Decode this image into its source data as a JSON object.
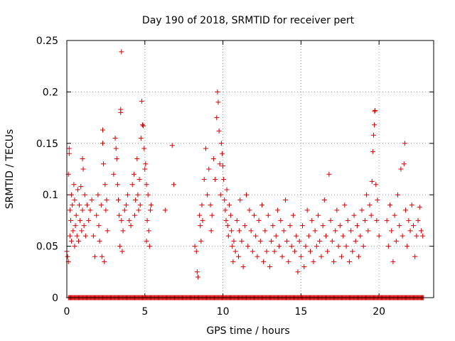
{
  "chart_data": {
    "type": "scatter",
    "title": "Day 190 of 2018, SRMTID for receiver pert",
    "xlabel": "GPS time / hours",
    "ylabel": "SRMTID / TECUs",
    "xlim": [
      0,
      23.5
    ],
    "ylim": [
      0,
      0.25
    ],
    "xticks": [
      0,
      5,
      10,
      15,
      20
    ],
    "xtick_labels": [
      "0",
      "5",
      "10",
      "15",
      "20"
    ],
    "yticks": [
      0,
      0.05,
      0.1,
      0.15,
      0.2,
      0.25
    ],
    "ytick_labels": [
      "0",
      "0.05",
      "0.1",
      "0.15",
      "0.2",
      "0.25"
    ],
    "grid": true,
    "marker": "+",
    "color": "#d40000",
    "series": [
      {
        "name": "SRMTID",
        "points": [
          [
            0.0,
            0.045
          ],
          [
            0.05,
            0.04
          ],
          [
            0.1,
            0.035
          ],
          [
            0.1,
            0.12
          ],
          [
            0.15,
            0.14
          ],
          [
            0.15,
            0.145
          ],
          [
            0.2,
            0.085
          ],
          [
            0.2,
            0.06
          ],
          [
            0.25,
            0.075
          ],
          [
            0.3,
            0.1
          ],
          [
            0.3,
            0.055
          ],
          [
            0.35,
            0.09
          ],
          [
            0.4,
            0.065
          ],
          [
            0.45,
            0.11
          ],
          [
            0.5,
            0.05
          ],
          [
            0.5,
            0.095
          ],
          [
            0.55,
            0.07
          ],
          [
            0.6,
            0.08
          ],
          [
            0.65,
            0.06
          ],
          [
            0.7,
            0.105
          ],
          [
            0.75,
            0.055
          ],
          [
            0.8,
            0.09
          ],
          [
            0.85,
            0.075
          ],
          [
            0.9,
            0.108
          ],
          [
            0.95,
            0.065
          ],
          [
            1.0,
            0.135
          ],
          [
            1.0,
            0.085
          ],
          [
            1.05,
            0.125
          ],
          [
            1.1,
            0.07
          ],
          [
            1.15,
            0.1
          ],
          [
            1.2,
            0.06
          ],
          [
            1.3,
            0.09
          ],
          [
            1.4,
            0.075
          ],
          [
            1.5,
            0.085
          ],
          [
            1.6,
            0.095
          ],
          [
            1.7,
            0.06
          ],
          [
            1.8,
            0.04
          ],
          [
            1.9,
            0.08
          ],
          [
            2.0,
            0.1
          ],
          [
            2.05,
            0.07
          ],
          [
            2.1,
            0.055
          ],
          [
            2.2,
            0.09
          ],
          [
            2.25,
            0.04
          ],
          [
            2.3,
            0.163
          ],
          [
            2.3,
            0.15
          ],
          [
            2.35,
            0.13
          ],
          [
            2.4,
            0.035
          ],
          [
            2.45,
            0.11
          ],
          [
            2.5,
            0.085
          ],
          [
            2.55,
            0.095
          ],
          [
            2.6,
            0.065
          ],
          [
            3.0,
            0.12
          ],
          [
            3.1,
            0.155
          ],
          [
            3.15,
            0.145
          ],
          [
            3.2,
            0.135
          ],
          [
            3.25,
            0.11
          ],
          [
            3.3,
            0.095
          ],
          [
            3.35,
            0.08
          ],
          [
            3.4,
            0.05
          ],
          [
            3.45,
            0.18
          ],
          [
            3.45,
            0.183
          ],
          [
            3.5,
            0.239
          ],
          [
            3.5,
            0.075
          ],
          [
            3.55,
            0.045
          ],
          [
            3.6,
            0.065
          ],
          [
            3.7,
            0.085
          ],
          [
            3.8,
            0.09
          ],
          [
            3.9,
            0.1
          ],
          [
            4.0,
            0.075
          ],
          [
            4.1,
            0.07
          ],
          [
            4.2,
            0.11
          ],
          [
            4.3,
            0.12
          ],
          [
            4.35,
            0.08
          ],
          [
            4.4,
            0.095
          ],
          [
            4.5,
            0.135
          ],
          [
            4.55,
            0.1
          ],
          [
            4.6,
            0.085
          ],
          [
            4.65,
            0.115
          ],
          [
            4.7,
            0.09
          ],
          [
            4.75,
            0.155
          ],
          [
            4.8,
            0.191
          ],
          [
            4.85,
            0.168
          ],
          [
            4.9,
            0.167
          ],
          [
            4.95,
            0.145
          ],
          [
            5.0,
            0.125
          ],
          [
            5.05,
            0.13
          ],
          [
            5.1,
            0.11
          ],
          [
            5.1,
            0.055
          ],
          [
            5.15,
            0.075
          ],
          [
            5.2,
            0.1
          ],
          [
            5.25,
            0.065
          ],
          [
            5.3,
            0.05
          ],
          [
            5.35,
            0.085
          ],
          [
            5.4,
            0.09
          ],
          [
            6.3,
            0.085
          ],
          [
            6.75,
            0.148
          ],
          [
            6.85,
            0.11
          ],
          [
            8.2,
            0.05
          ],
          [
            8.3,
            0.045
          ],
          [
            8.35,
            0.025
          ],
          [
            8.4,
            0.02
          ],
          [
            8.5,
            0.08
          ],
          [
            8.55,
            0.07
          ],
          [
            8.6,
            0.055
          ],
          [
            8.65,
            0.09
          ],
          [
            8.7,
            0.075
          ],
          [
            8.8,
            0.115
          ],
          [
            8.9,
            0.145
          ],
          [
            9.0,
            0.1
          ],
          [
            9.1,
            0.125
          ],
          [
            9.2,
            0.09
          ],
          [
            9.25,
            0.065
          ],
          [
            9.3,
            0.08
          ],
          [
            9.4,
            0.135
          ],
          [
            9.5,
            0.115
          ],
          [
            9.6,
            0.175
          ],
          [
            9.65,
            0.2
          ],
          [
            9.7,
            0.19
          ],
          [
            9.75,
            0.162
          ],
          [
            9.8,
            0.13
          ],
          [
            9.85,
            0.1
          ],
          [
            9.9,
            0.15
          ],
          [
            9.95,
            0.14
          ],
          [
            10.0,
            0.128
          ],
          [
            10.05,
            0.115
          ],
          [
            10.1,
            0.095
          ],
          [
            10.15,
            0.085
          ],
          [
            10.2,
            0.075
          ],
          [
            10.25,
            0.105
          ],
          [
            10.3,
            0.07
          ],
          [
            10.35,
            0.06
          ],
          [
            10.4,
            0.09
          ],
          [
            10.5,
            0.08
          ],
          [
            10.55,
            0.065
          ],
          [
            10.6,
            0.05
          ],
          [
            10.65,
            0.035
          ],
          [
            10.7,
            0.055
          ],
          [
            10.8,
            0.045
          ],
          [
            10.9,
            0.075
          ],
          [
            11.0,
            0.04
          ],
          [
            11.05,
            0.065
          ],
          [
            11.1,
            0.095
          ],
          [
            11.2,
            0.055
          ],
          [
            11.3,
            0.03
          ],
          [
            11.4,
            0.07
          ],
          [
            11.5,
            0.1
          ],
          [
            11.6,
            0.05
          ],
          [
            11.7,
            0.085
          ],
          [
            11.8,
            0.065
          ],
          [
            11.9,
            0.045
          ],
          [
            12.0,
            0.08
          ],
          [
            12.1,
            0.06
          ],
          [
            12.2,
            0.04
          ],
          [
            12.3,
            0.075
          ],
          [
            12.4,
            0.055
          ],
          [
            12.5,
            0.09
          ],
          [
            12.6,
            0.035
          ],
          [
            12.7,
            0.065
          ],
          [
            12.8,
            0.045
          ],
          [
            12.9,
            0.08
          ],
          [
            13.0,
            0.03
          ],
          [
            13.1,
            0.055
          ],
          [
            13.2,
            0.07
          ],
          [
            13.3,
            0.045
          ],
          [
            13.4,
            0.06
          ],
          [
            13.5,
            0.085
          ],
          [
            13.6,
            0.05
          ],
          [
            13.7,
            0.075
          ],
          [
            13.8,
            0.04
          ],
          [
            13.9,
            0.065
          ],
          [
            14.0,
            0.095
          ],
          [
            14.1,
            0.055
          ],
          [
            14.2,
            0.035
          ],
          [
            14.3,
            0.07
          ],
          [
            14.4,
            0.05
          ],
          [
            14.5,
            0.08
          ],
          [
            14.6,
            0.045
          ],
          [
            14.7,
            0.06
          ],
          [
            14.8,
            0.025
          ],
          [
            14.9,
            0.055
          ],
          [
            15.0,
            0.04
          ],
          [
            15.1,
            0.07
          ],
          [
            15.2,
            0.03
          ],
          [
            15.3,
            0.05
          ],
          [
            15.4,
            0.085
          ],
          [
            15.5,
            0.06
          ],
          [
            15.6,
            0.045
          ],
          [
            15.7,
            0.075
          ],
          [
            15.8,
            0.035
          ],
          [
            15.9,
            0.065
          ],
          [
            16.0,
            0.05
          ],
          [
            16.1,
            0.08
          ],
          [
            16.2,
            0.055
          ],
          [
            16.3,
            0.04
          ],
          [
            16.4,
            0.07
          ],
          [
            16.5,
            0.095
          ],
          [
            16.6,
            0.06
          ],
          [
            16.7,
            0.045
          ],
          [
            16.8,
            0.12
          ],
          [
            16.9,
            0.075
          ],
          [
            17.0,
            0.055
          ],
          [
            17.1,
            0.035
          ],
          [
            17.2,
            0.065
          ],
          [
            17.3,
            0.085
          ],
          [
            17.4,
            0.05
          ],
          [
            17.5,
            0.07
          ],
          [
            17.6,
            0.04
          ],
          [
            17.7,
            0.06
          ],
          [
            17.8,
            0.09
          ],
          [
            17.9,
            0.05
          ],
          [
            18.0,
            0.075
          ],
          [
            18.1,
            0.035
          ],
          [
            18.2,
            0.065
          ],
          [
            18.3,
            0.045
          ],
          [
            18.4,
            0.08
          ],
          [
            18.5,
            0.055
          ],
          [
            18.6,
            0.07
          ],
          [
            18.7,
            0.04
          ],
          [
            18.8,
            0.06
          ],
          [
            18.9,
            0.085
          ],
          [
            19.0,
            0.05
          ],
          [
            19.1,
            0.075
          ],
          [
            19.2,
            0.1
          ],
          [
            19.3,
            0.065
          ],
          [
            19.4,
            0.09
          ],
          [
            19.5,
            0.08
          ],
          [
            19.55,
            0.113
          ],
          [
            19.6,
            0.142
          ],
          [
            19.65,
            0.158
          ],
          [
            19.7,
            0.168
          ],
          [
            19.72,
            0.181
          ],
          [
            19.75,
            0.182
          ],
          [
            19.8,
            0.11
          ],
          [
            19.85,
            0.075
          ],
          [
            19.9,
            0.095
          ],
          [
            20.0,
            0.06
          ],
          [
            20.5,
            0.075
          ],
          [
            20.6,
            0.05
          ],
          [
            20.7,
            0.09
          ],
          [
            20.8,
            0.065
          ],
          [
            20.9,
            0.035
          ],
          [
            21.0,
            0.08
          ],
          [
            21.1,
            0.055
          ],
          [
            21.2,
            0.1
          ],
          [
            21.3,
            0.07
          ],
          [
            21.4,
            0.125
          ],
          [
            21.5,
            0.06
          ],
          [
            21.6,
            0.13
          ],
          [
            21.65,
            0.15
          ],
          [
            21.7,
            0.085
          ],
          [
            21.8,
            0.05
          ],
          [
            21.9,
            0.075
          ],
          [
            22.0,
            0.065
          ],
          [
            22.1,
            0.09
          ],
          [
            22.2,
            0.07
          ],
          [
            22.3,
            0.04
          ],
          [
            22.4,
            0.06
          ],
          [
            22.5,
            0.075
          ],
          [
            22.6,
            0.088
          ],
          [
            22.7,
            0.065
          ],
          [
            22.8,
            0.06
          ]
        ]
      }
    ],
    "zero_baseline_ranges": [
      [
        0.1,
        5.6
      ],
      [
        5.6,
        8.2
      ],
      [
        8.2,
        22.9
      ]
    ]
  }
}
